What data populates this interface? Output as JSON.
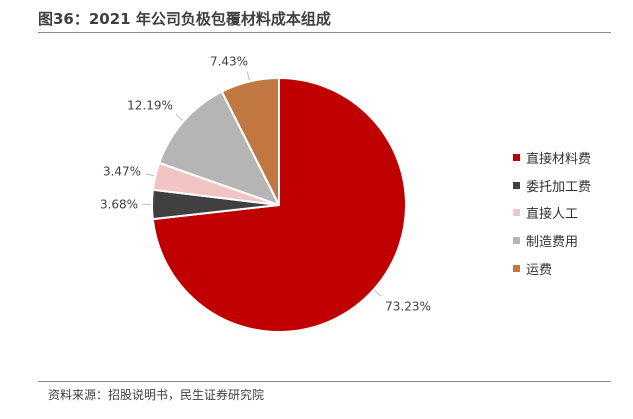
{
  "title": "图36：2021 年公司负极包覆材料成本组成",
  "source": "资料来源：招股说明书，民生证券研究院",
  "chart_data": {
    "type": "pie",
    "title": "图36：2021 年公司负极包覆材料成本组成",
    "slices": [
      {
        "label": "直接材料费",
        "value": 73.23,
        "display": "73.23%",
        "color": "#C00000"
      },
      {
        "label": "委托加工费",
        "value": 3.68,
        "display": "3.68%",
        "color": "#404040"
      },
      {
        "label": "直接人工",
        "value": 3.47,
        "display": "3.47%",
        "color": "#F2C4C4"
      },
      {
        "label": "制造费用",
        "value": 12.19,
        "display": "12.19%",
        "color": "#B5B5B5"
      },
      {
        "label": "运费",
        "value": 7.43,
        "display": "7.43%",
        "color": "#C07840"
      }
    ],
    "start": "12 o'clock",
    "direction": "clockwise",
    "legend_position": "right"
  }
}
